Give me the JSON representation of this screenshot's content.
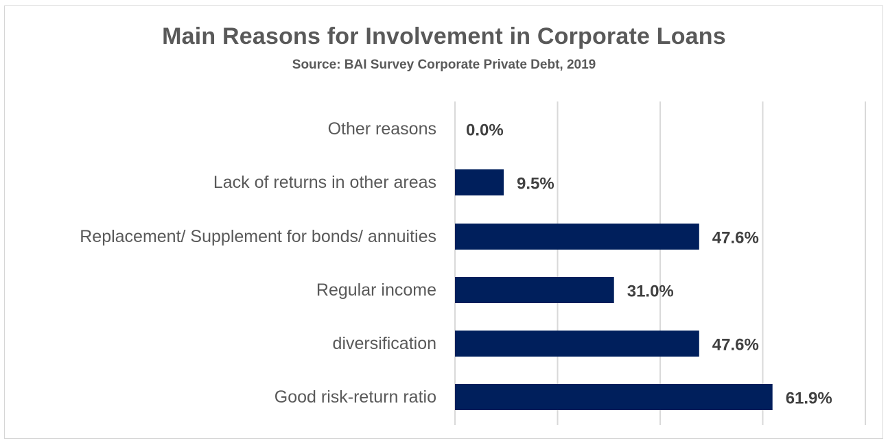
{
  "chart_data": {
    "type": "bar",
    "orientation": "horizontal",
    "title": "Main Reasons for Involvement in Corporate Loans",
    "subtitle": "Source: BAI Survey Corporate Private Debt, 2019",
    "categories": [
      "Other reasons",
      "Lack of returns in other areas",
      "Replacement/ Supplement for bonds/ annuities",
      "Regular income",
      "diversification",
      "Good risk-return ratio"
    ],
    "values": [
      0.0,
      9.5,
      47.6,
      31.0,
      47.6,
      61.9
    ],
    "data_labels": [
      "0.0%",
      "9.5%",
      "47.6%",
      "31.0%",
      "47.6%",
      "61.9%"
    ],
    "unit": "%",
    "xlim": [
      0,
      80
    ],
    "x_gridlines": [
      0,
      20,
      40,
      60,
      80
    ],
    "grid": true,
    "legend": "none",
    "bar_color": "#001f5c",
    "xlabel": "",
    "ylabel": ""
  }
}
